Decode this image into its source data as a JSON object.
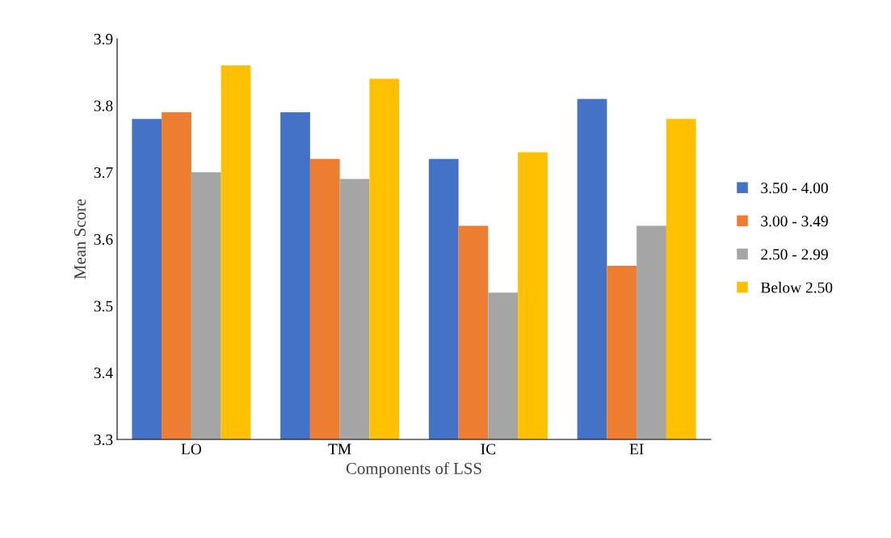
{
  "chart_data": {
    "type": "bar",
    "xlabel": "Components of LSS",
    "ylabel": "Mean Score",
    "categories": [
      "LO",
      "TM",
      "IC",
      "EI"
    ],
    "series": [
      {
        "name": "3.50 - 4.00",
        "color": "#4472c4",
        "values": [
          3.78,
          3.79,
          3.72,
          3.81
        ]
      },
      {
        "name": "3.00 - 3.49",
        "color": "#ed7d31",
        "values": [
          3.79,
          3.72,
          3.62,
          3.56
        ]
      },
      {
        "name": "2.50 - 2.99",
        "color": "#a5a5a5",
        "values": [
          3.7,
          3.69,
          3.52,
          3.62
        ]
      },
      {
        "name": "Below 2.50",
        "color": "#ffc000",
        "values": [
          3.86,
          3.84,
          3.73,
          3.78
        ]
      }
    ],
    "ylim": [
      3.3,
      3.9
    ],
    "yticks": [
      3.3,
      3.4,
      3.5,
      3.6,
      3.7,
      3.8,
      3.9
    ],
    "grid": false,
    "legend": "right"
  }
}
